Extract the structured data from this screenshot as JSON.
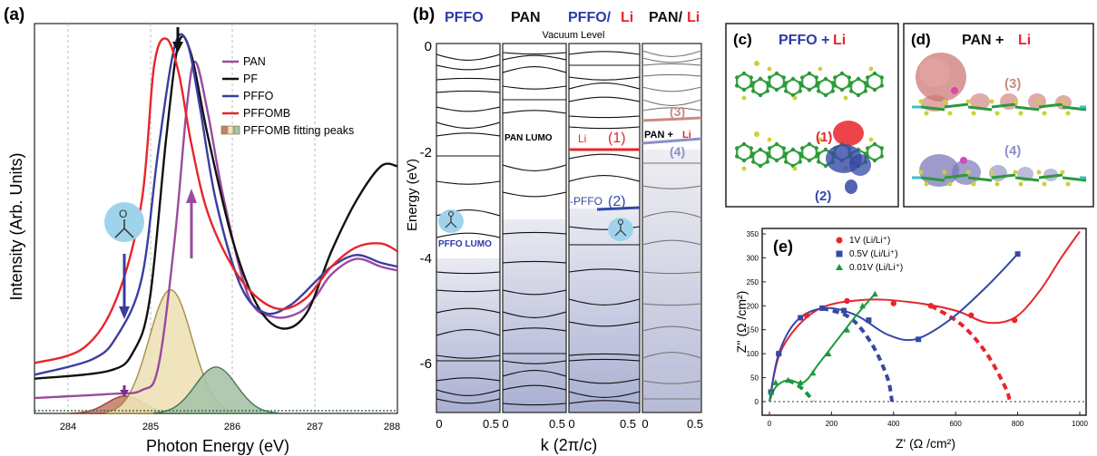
{
  "panel_a": {
    "label": "(a)",
    "ylabel": "Intensity (Arb. Units)",
    "xlabel": "Photon Energy (eV)",
    "xticks": [
      "284",
      "285",
      "286",
      "287",
      "288"
    ],
    "legend": [
      {
        "name": "PAN",
        "color": "#9b4a9e"
      },
      {
        "name": "PF",
        "color": "#111111"
      },
      {
        "name": "PFFO",
        "color": "#3b3ea0"
      },
      {
        "name": "PFFOMB",
        "color": "#e8252b"
      },
      {
        "name": "PFFOMB fitting peaks",
        "color": "#7a6a2e"
      }
    ]
  },
  "panel_b": {
    "label": "(b)",
    "col_titles": [
      {
        "text": "PFFO",
        "color": "#2b3aa8"
      },
      {
        "text": "PAN",
        "color": "#111111"
      },
      {
        "text": "PFFO/",
        "color": "#2b3aa8"
      },
      {
        "text": "Li",
        "color": "#e8252b"
      },
      {
        "text": "PAN/",
        "color": "#111111"
      },
      {
        "text": "Li",
        "color": "#e8252b"
      }
    ],
    "vacuum_label": "Vacuum Level",
    "ylabel": "Energy (eV)",
    "xlabel": "k (2π/c)",
    "yticks": [
      "0",
      "-2",
      "-4",
      "-6"
    ],
    "xticks": [
      "0",
      "0.5",
      "0",
      "0.5",
      "0",
      "0.5",
      "0",
      "0.5"
    ],
    "annotations": {
      "pan_lumo": "PAN LUMO",
      "pffo_lumo": "PFFO LUMO",
      "li": "Li",
      "state1": "(1)",
      "pffo_prefix": "-PFFO",
      "state2": "(2)",
      "state3": "(3)",
      "pan_plus": "PAN +",
      "li2": "Li",
      "state4": "(4)"
    }
  },
  "panel_c": {
    "label": "(c)",
    "title_main": "PFFO +",
    "title_li": "Li",
    "state1": "(1)",
    "state2": "(2)"
  },
  "panel_d": {
    "label": "(d)",
    "title_main": "PAN +",
    "title_li": "Li",
    "state3": "(3)",
    "state4": "(4)"
  },
  "panel_e": {
    "label": "(e)",
    "ylabel": "Z'' (Ω /cm²)",
    "xlabel": "Z' (Ω /cm²)",
    "xticks": [
      "0",
      "200",
      "400",
      "600",
      "800",
      "1000"
    ],
    "yticks": [
      "0",
      "50",
      "100",
      "150",
      "200",
      "250",
      "300",
      "350"
    ]
  },
  "chart_data": [
    {
      "type": "line",
      "xlabel": "Photon Energy (eV)",
      "ylabel": "Intensity (Arb. Units)",
      "xlim": [
        283.6,
        288
      ],
      "series": [
        {
          "name": "PAN",
          "color": "#9b4a9e",
          "x": [
            283.6,
            284.5,
            284.9,
            285.1,
            285.3,
            285.45,
            285.55,
            285.7,
            285.9,
            286.2,
            286.5,
            286.8,
            287.0,
            287.2,
            287.5,
            287.8,
            288.0
          ],
          "y": [
            0.04,
            0.05,
            0.06,
            0.12,
            0.45,
            0.8,
            0.91,
            0.78,
            0.55,
            0.3,
            0.25,
            0.26,
            0.3,
            0.36,
            0.4,
            0.38,
            0.37
          ]
        },
        {
          "name": "PF",
          "color": "#111111",
          "x": [
            283.6,
            284.5,
            284.8,
            285.0,
            285.2,
            285.35,
            285.5,
            285.7,
            286.0,
            286.3,
            286.6,
            286.9,
            287.2,
            287.5,
            287.8,
            288.0
          ],
          "y": [
            0.09,
            0.11,
            0.16,
            0.3,
            0.72,
            0.96,
            0.93,
            0.72,
            0.45,
            0.28,
            0.22,
            0.26,
            0.42,
            0.55,
            0.64,
            0.64
          ]
        },
        {
          "name": "PFFO",
          "color": "#3b3ea0",
          "x": [
            283.6,
            284.3,
            284.6,
            284.9,
            285.1,
            285.3,
            285.45,
            285.6,
            285.8,
            286.1,
            286.4,
            286.7,
            287.0,
            287.2,
            287.5,
            287.8,
            288.0
          ],
          "y": [
            0.1,
            0.14,
            0.2,
            0.35,
            0.68,
            0.95,
            0.96,
            0.8,
            0.55,
            0.33,
            0.26,
            0.28,
            0.34,
            0.38,
            0.41,
            0.39,
            0.38
          ]
        },
        {
          "name": "PFFOMB",
          "color": "#e8252b",
          "x": [
            283.6,
            284.2,
            284.6,
            284.9,
            285.05,
            285.2,
            285.35,
            285.5,
            285.7,
            286.0,
            286.3,
            286.6,
            286.9,
            287.2,
            287.5,
            287.8,
            288.0
          ],
          "y": [
            0.13,
            0.17,
            0.3,
            0.55,
            0.9,
            0.97,
            0.88,
            0.7,
            0.52,
            0.38,
            0.3,
            0.27,
            0.3,
            0.38,
            0.43,
            0.44,
            0.42
          ]
        }
      ]
    },
    {
      "type": "scatter",
      "xlabel": "Z' (Ω /cm²)",
      "ylabel": "Z'' (Ω /cm²)",
      "xlim": [
        0,
        1000
      ],
      "ylim": [
        0,
        350
      ],
      "series": [
        {
          "name": "1V (Li/Li⁺)",
          "color": "#e8252b",
          "x": [
            5,
            30,
            120,
            250,
            400,
            520,
            650,
            790
          ],
          "y": [
            20,
            100,
            180,
            210,
            205,
            200,
            180,
            170
          ]
        },
        {
          "name": "0.5V (Li/Li⁺)",
          "color": "#3548a6",
          "x": [
            5,
            30,
            100,
            170,
            240,
            320,
            480,
            800
          ],
          "y": [
            20,
            100,
            175,
            195,
            190,
            170,
            130,
            308
          ]
        },
        {
          "name": "0.01V (Li/Li⁺)",
          "color": "#1a9a3e",
          "x": [
            5,
            20,
            60,
            100,
            140,
            190,
            250,
            300,
            340
          ],
          "y": [
            20,
            40,
            45,
            40,
            60,
            100,
            150,
            200,
            225
          ]
        }
      ]
    }
  ]
}
